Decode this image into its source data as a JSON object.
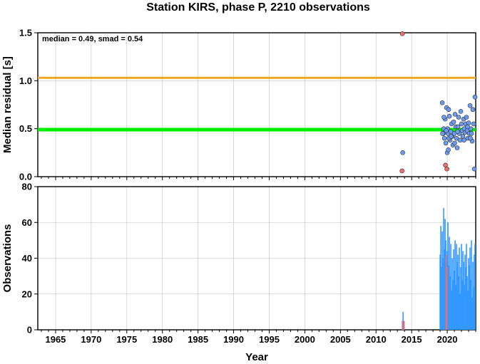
{
  "chart_data": [
    {
      "type": "scatter",
      "title": "Station KIRS, phase P, 2210 observations",
      "annotation": "median = 0.49, smad = 0.54",
      "ylabel": "Median residual [s]",
      "xlim": [
        1962.5,
        2024
      ],
      "ylim": [
        0,
        1.5
      ],
      "yticks": [
        "0.0",
        "0.5",
        "1.0",
        "1.5"
      ],
      "grid": true,
      "hlines": [
        {
          "y": 0.49,
          "color": "#00ee00"
        },
        {
          "y": 1.03,
          "color": "#f5a623"
        }
      ],
      "series": [
        {
          "color": "#f26b6b",
          "points": [
            [
              2013.7,
              1.49
            ],
            [
              2013.65,
              0.06
            ],
            [
              2019.75,
              0.12
            ],
            [
              2019.95,
              0.08
            ]
          ]
        },
        {
          "color": "#6b9bf2",
          "points": [
            [
              2013.75,
              0.25
            ],
            [
              2019.3,
              0.77
            ],
            [
              2019.5,
              0.5
            ],
            [
              2019.45,
              0.45
            ],
            [
              2019.6,
              0.4
            ],
            [
              2019.7,
              0.6
            ],
            [
              2019.8,
              0.35
            ],
            [
              2019.9,
              0.72
            ],
            [
              2020.0,
              0.25
            ],
            [
              2020.05,
              0.5
            ],
            [
              2020.1,
              0.45
            ],
            [
              2020.2,
              0.7
            ],
            [
              2020.3,
              0.63
            ],
            [
              2020.4,
              0.38
            ],
            [
              2020.5,
              0.47
            ],
            [
              2020.6,
              0.55
            ],
            [
              2020.7,
              0.42
            ],
            [
              2020.8,
              0.33
            ],
            [
              2020.9,
              0.57
            ],
            [
              2021.0,
              0.45
            ],
            [
              2021.1,
              0.65
            ],
            [
              2021.2,
              0.52
            ],
            [
              2021.3,
              0.4
            ],
            [
              2021.4,
              0.3
            ],
            [
              2021.5,
              0.52
            ],
            [
              2021.6,
              0.62
            ],
            [
              2021.7,
              0.45
            ],
            [
              2021.8,
              0.38
            ],
            [
              2021.9,
              0.68
            ],
            [
              2022.0,
              0.55
            ],
            [
              2022.1,
              0.48
            ],
            [
              2022.2,
              0.42
            ],
            [
              2022.3,
              0.6
            ],
            [
              2022.4,
              0.5
            ],
            [
              2022.5,
              0.46
            ],
            [
              2022.6,
              0.55
            ],
            [
              2022.7,
              0.62
            ],
            [
              2022.8,
              0.48
            ],
            [
              2022.9,
              0.4
            ],
            [
              2023.0,
              0.56
            ],
            [
              2023.1,
              0.45
            ],
            [
              2023.2,
              0.74
            ],
            [
              2023.3,
              0.5
            ],
            [
              2023.4,
              0.45
            ],
            [
              2023.5,
              0.37
            ],
            [
              2023.6,
              0.7
            ],
            [
              2023.7,
              0.55
            ],
            [
              2023.8,
              0.08
            ],
            [
              2023.9,
              0.83
            ],
            [
              2019.35,
              0.45
            ],
            [
              2019.55,
              0.62
            ],
            [
              2020.15,
              0.28
            ],
            [
              2020.25,
              0.4
            ],
            [
              2021.05,
              0.35
            ],
            [
              2021.45,
              0.47
            ],
            [
              2022.35,
              0.38
            ],
            [
              2022.85,
              0.52
            ],
            [
              2023.25,
              0.4
            ],
            [
              2019.85,
              0.48
            ],
            [
              2020.55,
              0.42
            ]
          ]
        }
      ]
    },
    {
      "type": "bar",
      "ylabel": "Observations",
      "xlabel": "Year",
      "xlim": [
        1962.5,
        2024
      ],
      "ylim": [
        0,
        80
      ],
      "yticks": [
        "0",
        "20",
        "40",
        "60",
        "80"
      ],
      "xticks": [
        1965,
        1970,
        1975,
        1980,
        1985,
        1990,
        1995,
        2000,
        2005,
        2010,
        2015,
        2020
      ],
      "grid": true,
      "series": [
        {
          "color": "#3399ff",
          "x": [
            2013.8,
            2019.0,
            2019.1,
            2019.2,
            2019.3,
            2019.4,
            2019.5,
            2019.6,
            2019.7,
            2019.8,
            2019.9,
            2020.0,
            2020.1,
            2020.2,
            2020.3,
            2020.4,
            2020.5,
            2020.6,
            2020.7,
            2020.8,
            2020.9,
            2021.0,
            2021.1,
            2021.2,
            2021.3,
            2021.4,
            2021.5,
            2021.6,
            2021.7,
            2021.8,
            2021.9,
            2022.0,
            2022.1,
            2022.2,
            2022.3,
            2022.4,
            2022.5,
            2022.6,
            2022.7,
            2022.8,
            2022.9,
            2023.0,
            2023.1,
            2023.2,
            2023.3,
            2023.4,
            2023.5,
            2023.6,
            2023.7,
            2023.8,
            2023.9
          ],
          "values": [
            10,
            42,
            58,
            35,
            55,
            40,
            68,
            45,
            62,
            50,
            38,
            44,
            60,
            36,
            52,
            30,
            48,
            22,
            40,
            28,
            45,
            33,
            50,
            25,
            48,
            38,
            42,
            30,
            46,
            20,
            35,
            48,
            28,
            44,
            38,
            25,
            42,
            35,
            48,
            30,
            22,
            40,
            36,
            46,
            28,
            50,
            18,
            38,
            24,
            42,
            48
          ]
        },
        {
          "color": "#f26b6b",
          "x": [
            2013.7,
            2013.95,
            2019.85,
            2019.95
          ],
          "values": [
            5,
            5,
            42,
            35
          ]
        }
      ]
    }
  ]
}
